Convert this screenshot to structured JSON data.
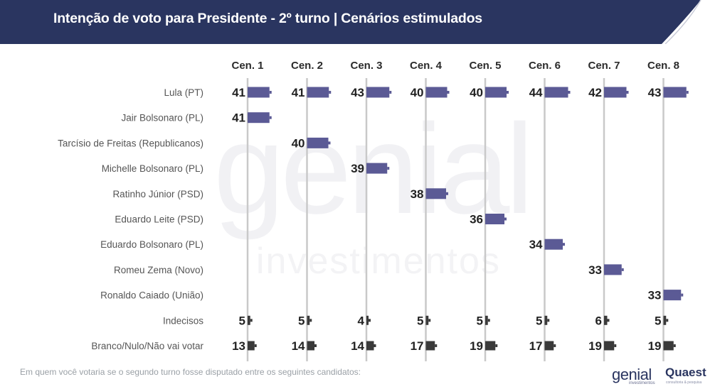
{
  "header": {
    "title": "Intenção de voto para Presidente - 2º turno | Cenários estimulados"
  },
  "chart_data": {
    "type": "bar",
    "orientation": "horizontal",
    "title": "Intenção de voto para Presidente - 2º turno | Cenários estimulados",
    "scenarios": [
      "Cen. 1",
      "Cen. 2",
      "Cen. 3",
      "Cen. 4",
      "Cen. 5",
      "Cen. 6",
      "Cen. 7",
      "Cen. 8"
    ],
    "categories": [
      "Lula (PT)",
      "Jair Bolsonaro (PL)",
      "Tarcísio de Freitas (Republicanos)",
      "Michelle Bolsonaro (PL)",
      "Ratinho Júnior (PSD)",
      "Eduardo Leite (PSD)",
      "Eduardo Bolsonaro (PL)",
      "Romeu Zema (Novo)",
      "Ronaldo Caiado (União)",
      "Indecisos",
      "Branco/Nulo/Não vai votar"
    ],
    "values": [
      [
        41,
        41,
        43,
        40,
        40,
        44,
        42,
        43
      ],
      [
        41,
        null,
        null,
        null,
        null,
        null,
        null,
        null
      ],
      [
        null,
        40,
        null,
        null,
        null,
        null,
        null,
        null
      ],
      [
        null,
        null,
        39,
        null,
        null,
        null,
        null,
        null
      ],
      [
        null,
        null,
        null,
        38,
        null,
        null,
        null,
        null
      ],
      [
        null,
        null,
        null,
        null,
        36,
        null,
        null,
        null
      ],
      [
        null,
        null,
        null,
        null,
        null,
        34,
        null,
        null
      ],
      [
        null,
        null,
        null,
        null,
        null,
        null,
        33,
        null
      ],
      [
        null,
        null,
        null,
        null,
        null,
        null,
        null,
        33
      ],
      [
        5,
        5,
        4,
        5,
        5,
        5,
        6,
        5
      ],
      [
        13,
        14,
        14,
        17,
        19,
        17,
        19,
        19
      ]
    ],
    "colors": {
      "candidate": "#5b5a95",
      "other": "#3a3a3a",
      "axis_line": "#c9c9c9",
      "header_bg": "#2a3560"
    },
    "grid": false,
    "legend": "none"
  },
  "footer": {
    "note": "Em quem você votaria se o segundo turno fosse disputado entre os seguintes candidatos:",
    "logo_genial": "genial",
    "logo_genial_sub": "investimentos",
    "logo_quaest": "Quaest",
    "logo_quaest_sub": "consultoria & pesquisa"
  }
}
